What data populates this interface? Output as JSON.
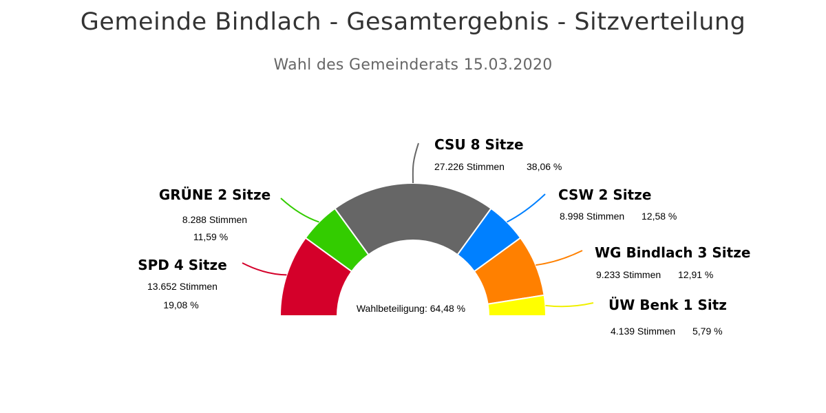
{
  "title": "Gemeinde Bindlach - Gesamtergebnis - Sitzverteilung",
  "subtitle": "Wahl des Gemeinderats 15.03.2020",
  "chart_data": {
    "type": "pie",
    "subtype": "semicircle",
    "center_label": "Wahlbeteiligung: 64,48 %",
    "total_seats": 20,
    "series": [
      {
        "party": "SPD",
        "seats": 4,
        "seats_label": "SPD 4 Sitze",
        "votes": "13.652 Stimmen",
        "percent": "19,08 %",
        "color": "#d4002a"
      },
      {
        "party": "GRÜNE",
        "seats": 2,
        "seats_label": "GRÜNE 2 Sitze",
        "votes": "8.288 Stimmen",
        "percent": "11,59 %",
        "color": "#33cc00"
      },
      {
        "party": "CSU",
        "seats": 8,
        "seats_label": "CSU 8 Sitze",
        "votes": "27.226 Stimmen",
        "percent": "38,06 %",
        "color": "#666666"
      },
      {
        "party": "CSW",
        "seats": 2,
        "seats_label": "CSW 2 Sitze",
        "votes": "8.998 Stimmen",
        "percent": "12,58 %",
        "color": "#0080ff"
      },
      {
        "party": "WG Bindlach",
        "seats": 3,
        "seats_label": "WG Bindlach 3 Sitze",
        "votes": "9.233 Stimmen",
        "percent": "12,91 %",
        "color": "#ff8000"
      },
      {
        "party": "ÜW Benk",
        "seats": 1,
        "seats_label": "ÜW Benk 1 Sitz",
        "votes": "4.139 Stimmen",
        "percent": "5,79 %",
        "color": "#ffff00"
      }
    ]
  }
}
